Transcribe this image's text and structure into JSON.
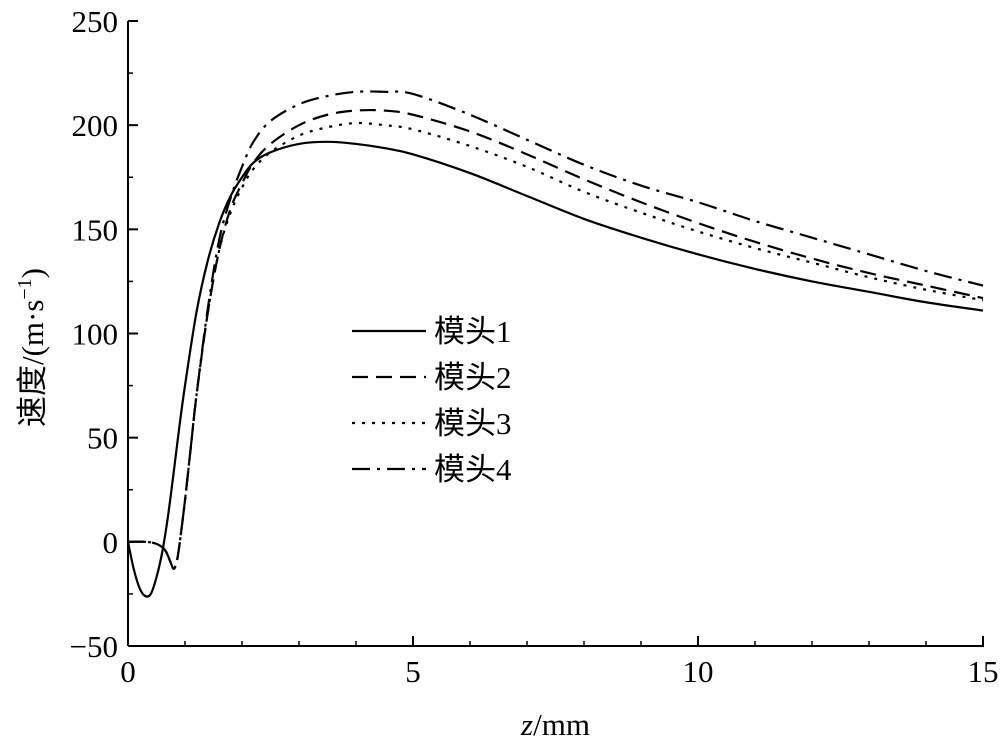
{
  "chart_data": {
    "type": "line",
    "xlabel_italic": "z",
    "xlabel_unit": "/mm",
    "ylabel_main": "速度/(m·s",
    "ylabel_sup": "−1",
    "ylabel_close": ")",
    "xlim": [
      0,
      15
    ],
    "ylim": [
      -50,
      250
    ],
    "xticks": [
      0,
      5,
      10,
      15
    ],
    "yticks": [
      -50,
      0,
      50,
      100,
      150,
      200,
      250
    ],
    "xtick_labels": [
      "0",
      "5",
      "10",
      "15"
    ],
    "ytick_labels": [
      "−50",
      "0",
      "50",
      "100",
      "150",
      "200",
      "250"
    ],
    "grid": false,
    "legend_position": "center",
    "series": [
      {
        "name": "模头1",
        "dash": "solid",
        "x": [
          0,
          0.1,
          0.2,
          0.3,
          0.4,
          0.5,
          0.6,
          0.7,
          0.8,
          0.9,
          1.0,
          1.2,
          1.4,
          1.6,
          1.8,
          2.0,
          2.2,
          2.5,
          3.0,
          3.5,
          4.0,
          4.5,
          5.0,
          6.0,
          7.0,
          8.0,
          9.0,
          10.0,
          11.0,
          12.0,
          13.0,
          14.0,
          15.0
        ],
        "y": [
          0,
          -13,
          -22,
          -26,
          -25,
          -17,
          -5,
          12,
          33,
          55,
          75,
          110,
          135,
          153,
          166,
          175,
          182,
          187,
          191,
          192,
          191,
          189,
          186,
          177,
          166,
          155,
          146,
          138,
          131,
          125,
          120,
          115,
          111
        ]
      },
      {
        "name": "模头2",
        "dash": "dashed",
        "x": [
          0,
          0.3,
          0.5,
          0.65,
          0.75,
          0.8,
          0.85,
          0.9,
          1.0,
          1.1,
          1.2,
          1.4,
          1.6,
          1.8,
          2.0,
          2.2,
          2.5,
          3.0,
          3.5,
          4.0,
          4.5,
          5.0,
          6.0,
          7.0,
          8.0,
          9.0,
          10.0,
          11.0,
          12.0,
          13.0,
          14.0,
          15.0
        ],
        "y": [
          0,
          0,
          -1,
          -4,
          -10,
          -13,
          -10,
          -2,
          20,
          45,
          70,
          110,
          140,
          160,
          172,
          182,
          191,
          200,
          205,
          207,
          207,
          205,
          197,
          186,
          174,
          163,
          153,
          144,
          136,
          129,
          123,
          117
        ]
      },
      {
        "name": "模头3",
        "dash": "dotted",
        "x": [
          0,
          0.3,
          0.5,
          0.65,
          0.75,
          0.8,
          0.85,
          0.9,
          1.0,
          1.1,
          1.2,
          1.4,
          1.6,
          1.8,
          2.0,
          2.2,
          2.5,
          3.0,
          3.5,
          4.0,
          4.5,
          5.0,
          6.0,
          7.0,
          8.0,
          9.0,
          10.0,
          11.0,
          12.0,
          13.0,
          14.0,
          15.0
        ],
        "y": [
          0,
          0,
          -1,
          -4,
          -10,
          -13,
          -10,
          -2,
          20,
          45,
          70,
          110,
          140,
          158,
          170,
          179,
          187,
          195,
          199,
          201,
          200,
          198,
          190,
          180,
          168,
          158,
          149,
          141,
          134,
          127,
          121,
          116
        ]
      },
      {
        "name": "模头4",
        "dash": "dashdot",
        "x": [
          0,
          0.3,
          0.5,
          0.65,
          0.75,
          0.8,
          0.85,
          0.9,
          1.0,
          1.1,
          1.2,
          1.4,
          1.6,
          1.8,
          2.0,
          2.2,
          2.5,
          3.0,
          3.5,
          4.0,
          4.5,
          5.0,
          6.0,
          7.0,
          8.0,
          9.0,
          10.0,
          11.0,
          12.0,
          13.0,
          14.0,
          15.0
        ],
        "y": [
          0,
          0,
          -1,
          -4,
          -10,
          -13,
          -10,
          -2,
          20,
          45,
          70,
          112,
          145,
          165,
          180,
          192,
          202,
          210,
          214,
          216,
          216,
          215,
          205,
          193,
          181,
          171,
          163,
          154,
          146,
          138,
          130,
          123
        ]
      }
    ]
  }
}
